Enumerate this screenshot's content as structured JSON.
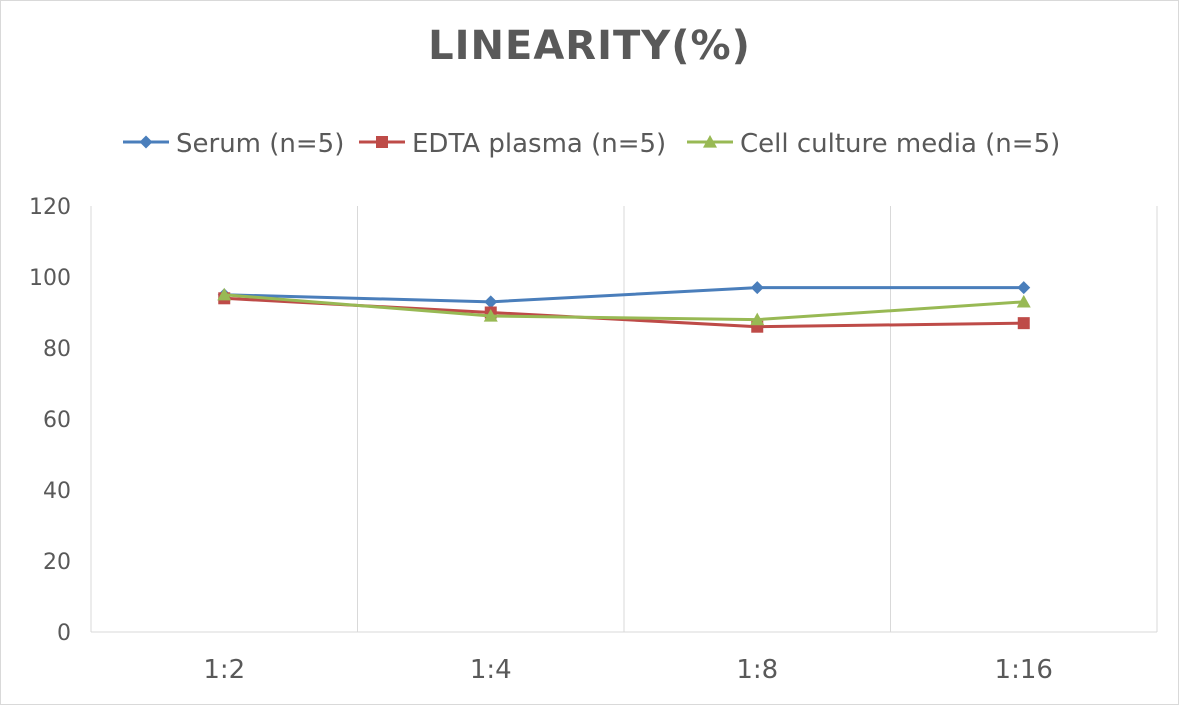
{
  "chart_data": {
    "type": "line",
    "title": "LINEARITY(%)",
    "xlabel": "",
    "ylabel": "",
    "categories": [
      "1:2",
      "1:4",
      "1:8",
      "1:16"
    ],
    "ylim": [
      0,
      120
    ],
    "yticks": [
      0,
      20,
      40,
      60,
      80,
      100,
      120
    ],
    "grid": "vertical",
    "legend_position": "top",
    "series": [
      {
        "name": "Serum (n=5)",
        "color": "#4a7ebb",
        "marker": "diamond",
        "values": [
          95,
          93,
          97,
          97
        ]
      },
      {
        "name": "EDTA plasma (n=5)",
        "color": "#be4b48",
        "marker": "square",
        "values": [
          94,
          90,
          86,
          87
        ]
      },
      {
        "name": "Cell culture media (n=5)",
        "color": "#98b954",
        "marker": "triangle",
        "values": [
          95,
          89,
          88,
          93
        ]
      }
    ]
  }
}
